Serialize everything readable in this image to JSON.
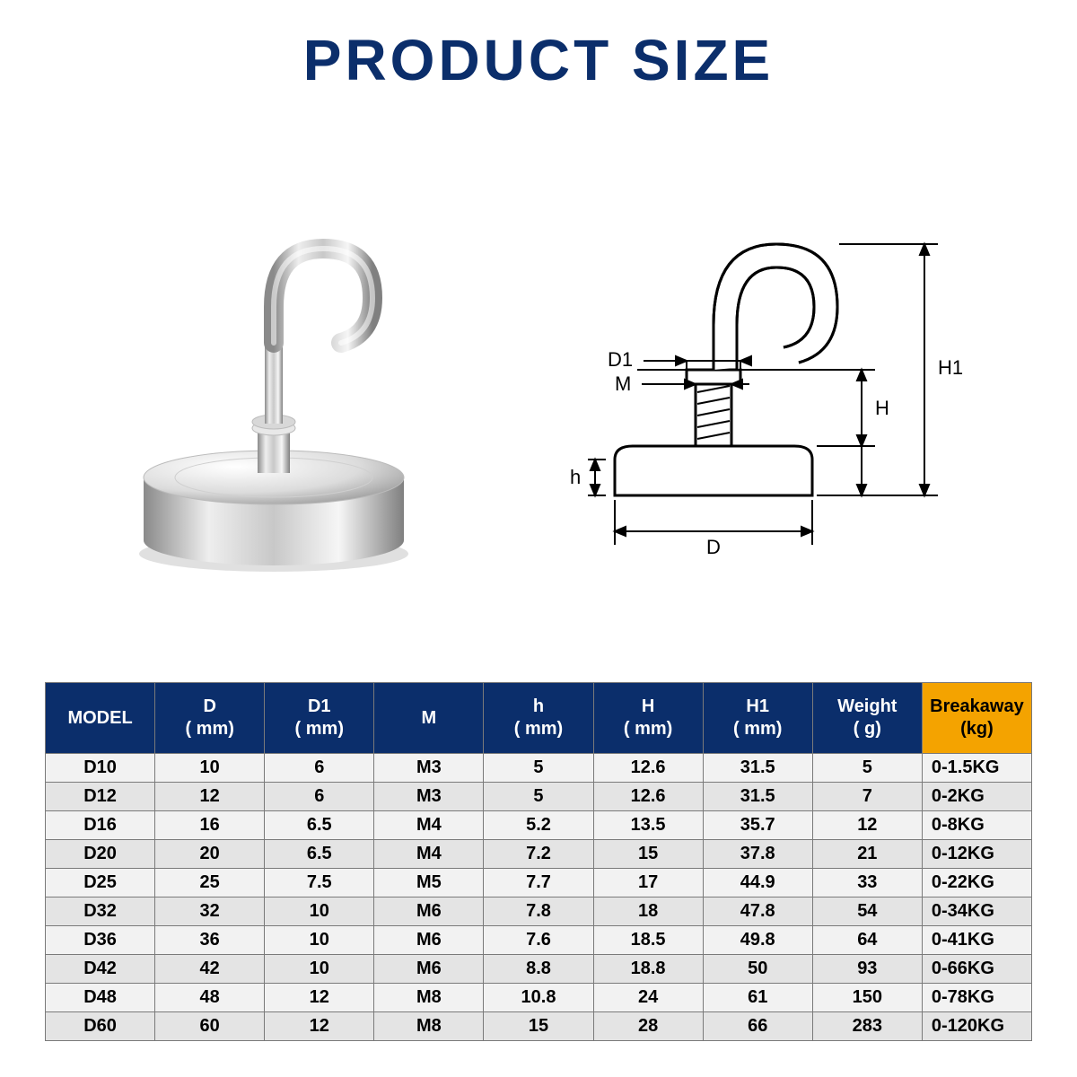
{
  "title": "PRODUCT SIZE",
  "title_color": "#0b2e6b",
  "diagram_labels": {
    "D": "D",
    "D1": "D1",
    "M": "M",
    "h": "h",
    "H": "H",
    "H1": "H1"
  },
  "table": {
    "header_bg": "#0b2e6b",
    "header_text": "#ffffff",
    "breakaway_bg": "#f4a300",
    "breakaway_text": "#000000",
    "row_odd_bg": "#f2f2f2",
    "row_even_bg": "#e4e4e4",
    "border_color": "#7a7a7a",
    "columns": [
      {
        "label": "MODEL",
        "sub": ""
      },
      {
        "label": "D",
        "sub": "( mm)"
      },
      {
        "label": "D1",
        "sub": "( mm)"
      },
      {
        "label": "M",
        "sub": ""
      },
      {
        "label": "h",
        "sub": "( mm)"
      },
      {
        "label": "H",
        "sub": "( mm)"
      },
      {
        "label": "H1",
        "sub": "( mm)"
      },
      {
        "label": "Weight",
        "sub": "( g)"
      },
      {
        "label": "Breakaway",
        "sub": "(kg)"
      }
    ],
    "rows": [
      [
        "D10",
        "10",
        "6",
        "M3",
        "5",
        "12.6",
        "31.5",
        "5",
        "0-1.5KG"
      ],
      [
        "D12",
        "12",
        "6",
        "M3",
        "5",
        "12.6",
        "31.5",
        "7",
        "0-2KG"
      ],
      [
        "D16",
        "16",
        "6.5",
        "M4",
        "5.2",
        "13.5",
        "35.7",
        "12",
        "0-8KG"
      ],
      [
        "D20",
        "20",
        "6.5",
        "M4",
        "7.2",
        "15",
        "37.8",
        "21",
        "0-12KG"
      ],
      [
        "D25",
        "25",
        "7.5",
        "M5",
        "7.7",
        "17",
        "44.9",
        "33",
        "0-22KG"
      ],
      [
        "D32",
        "32",
        "10",
        "M6",
        "7.8",
        "18",
        "47.8",
        "54",
        "0-34KG"
      ],
      [
        "D36",
        "36",
        "10",
        "M6",
        "7.6",
        "18.5",
        "49.8",
        "64",
        "0-41KG"
      ],
      [
        "D42",
        "42",
        "10",
        "M6",
        "8.8",
        "18.8",
        "50",
        "93",
        "0-66KG"
      ],
      [
        "D48",
        "48",
        "12",
        "M8",
        "10.8",
        "24",
        "61",
        "150",
        "0-78KG"
      ],
      [
        "D60",
        "60",
        "12",
        "M8",
        "15",
        "28",
        "66",
        "283",
        "0-120KG"
      ]
    ]
  },
  "photo": {
    "base_fill_top": "#f5f5f5",
    "base_fill_bottom": "#b8b8b8",
    "hook_stroke": "#bfbfbf"
  },
  "diagram": {
    "stroke": "#000000",
    "stroke_width": 2
  }
}
